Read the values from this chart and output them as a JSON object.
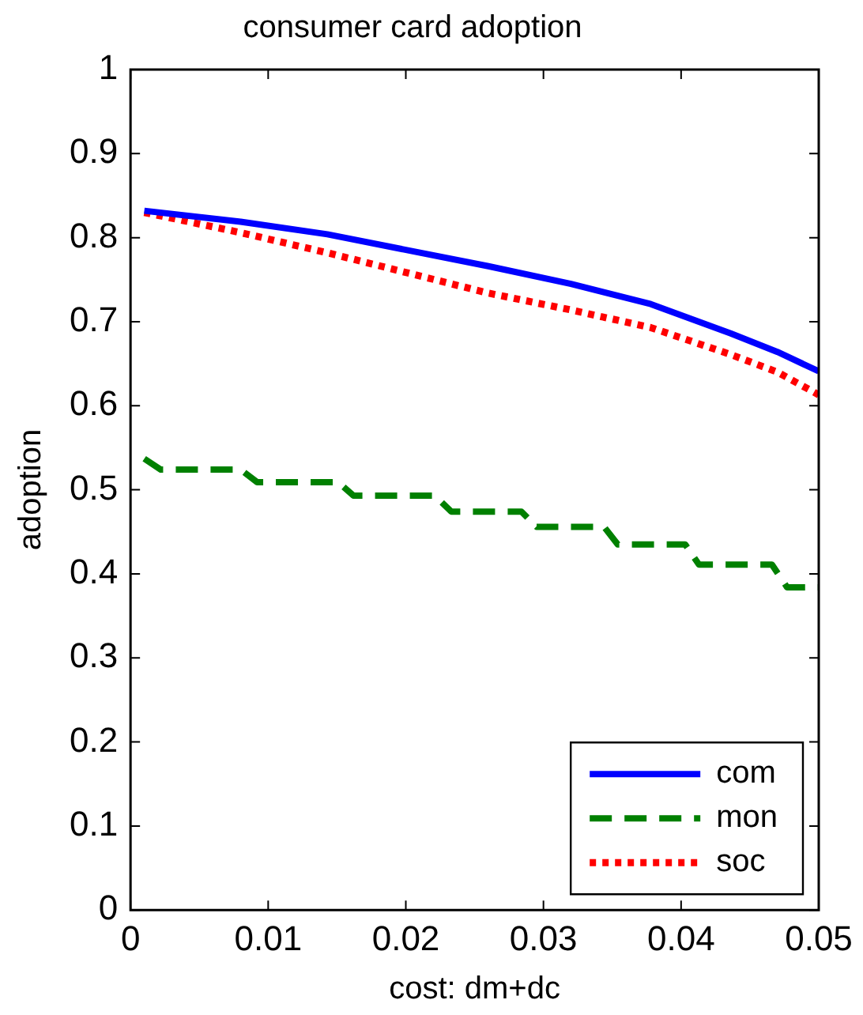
{
  "chart_data": {
    "type": "line",
    "title": "consumer card adoption",
    "xlabel": "cost: dm+dc",
    "ylabel": "adoption",
    "xlim": [
      0,
      0.05
    ],
    "xticks": [
      0,
      0.01,
      0.02,
      0.03,
      0.04,
      0.05
    ],
    "ylim": [
      0,
      1
    ],
    "yticks": [
      0,
      0.1,
      0.2,
      0.3,
      0.4,
      0.5,
      0.6,
      0.7,
      0.8,
      0.9,
      1
    ],
    "grid": false,
    "legend": "bottom right",
    "series": [
      {
        "name": "com",
        "color": "#0000ff",
        "line_style": "solid",
        "x": [
          0.001,
          0.008,
          0.0143,
          0.026,
          0.032,
          0.0378,
          0.0436,
          0.047,
          0.05
        ],
        "values": [
          0.832,
          0.819,
          0.804,
          0.766,
          0.745,
          0.721,
          0.686,
          0.664,
          0.641
        ]
      },
      {
        "name": "mon",
        "color": "#008000",
        "line_style": "dashed",
        "x": [
          0.001,
          0.0022,
          0.008,
          0.0092,
          0.0151,
          0.0162,
          0.0221,
          0.0233,
          0.0284,
          0.0295,
          0.0344,
          0.0354,
          0.0403,
          0.0413,
          0.0466,
          0.0477,
          0.05
        ],
        "values": [
          0.537,
          0.524,
          0.524,
          0.509,
          0.509,
          0.493,
          0.493,
          0.474,
          0.474,
          0.456,
          0.456,
          0.435,
          0.435,
          0.411,
          0.411,
          0.384,
          0.384
        ]
      },
      {
        "name": "soc",
        "color": "#ff0000",
        "line_style": "dotted",
        "x": [
          0.001,
          0.008,
          0.0143,
          0.026,
          0.032,
          0.0378,
          0.0436,
          0.047,
          0.05
        ],
        "values": [
          0.83,
          0.806,
          0.782,
          0.734,
          0.714,
          0.693,
          0.661,
          0.64,
          0.613
        ]
      }
    ]
  }
}
